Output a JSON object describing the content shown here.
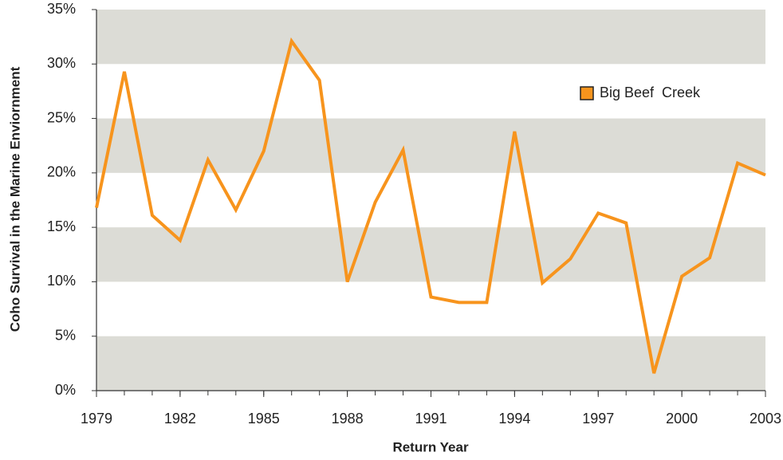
{
  "chart_data": {
    "type": "line",
    "xlabel": "Return Year",
    "ylabel": "Coho Survival in the Marine Enviornment",
    "x": [
      1979,
      1980,
      1981,
      1982,
      1983,
      1984,
      1985,
      1986,
      1987,
      1988,
      1989,
      1990,
      1991,
      1992,
      1993,
      1994,
      1995,
      1996,
      1997,
      1998,
      1999,
      2000,
      2001,
      2002,
      2003
    ],
    "series": [
      {
        "name": "Big Beef  Creek",
        "color": "#f7941d",
        "values": [
          16.8,
          29.3,
          16.1,
          13.8,
          21.2,
          16.6,
          22.0,
          32.1,
          28.5,
          10.0,
          17.3,
          22.1,
          8.6,
          8.1,
          8.1,
          23.8,
          9.9,
          12.1,
          16.3,
          15.4,
          1.6,
          10.5,
          12.2,
          20.9,
          19.8
        ]
      }
    ],
    "xlim": [
      1979,
      2003
    ],
    "xticks": [
      1979,
      1982,
      1985,
      1988,
      1991,
      1994,
      1997,
      2000,
      2003
    ],
    "ylim": [
      0,
      35
    ],
    "yticks": [
      {
        "value": 0,
        "label": "0%"
      },
      {
        "value": 5,
        "label": "5%"
      },
      {
        "value": 10,
        "label": "10%"
      },
      {
        "value": 15,
        "label": "15%"
      },
      {
        "value": 20,
        "label": "20%"
      },
      {
        "value": 25,
        "label": "25%"
      },
      {
        "value": 30,
        "label": "30%"
      },
      {
        "value": 35,
        "label": "35%"
      }
    ],
    "grid": "bands",
    "legend": "upper right"
  }
}
